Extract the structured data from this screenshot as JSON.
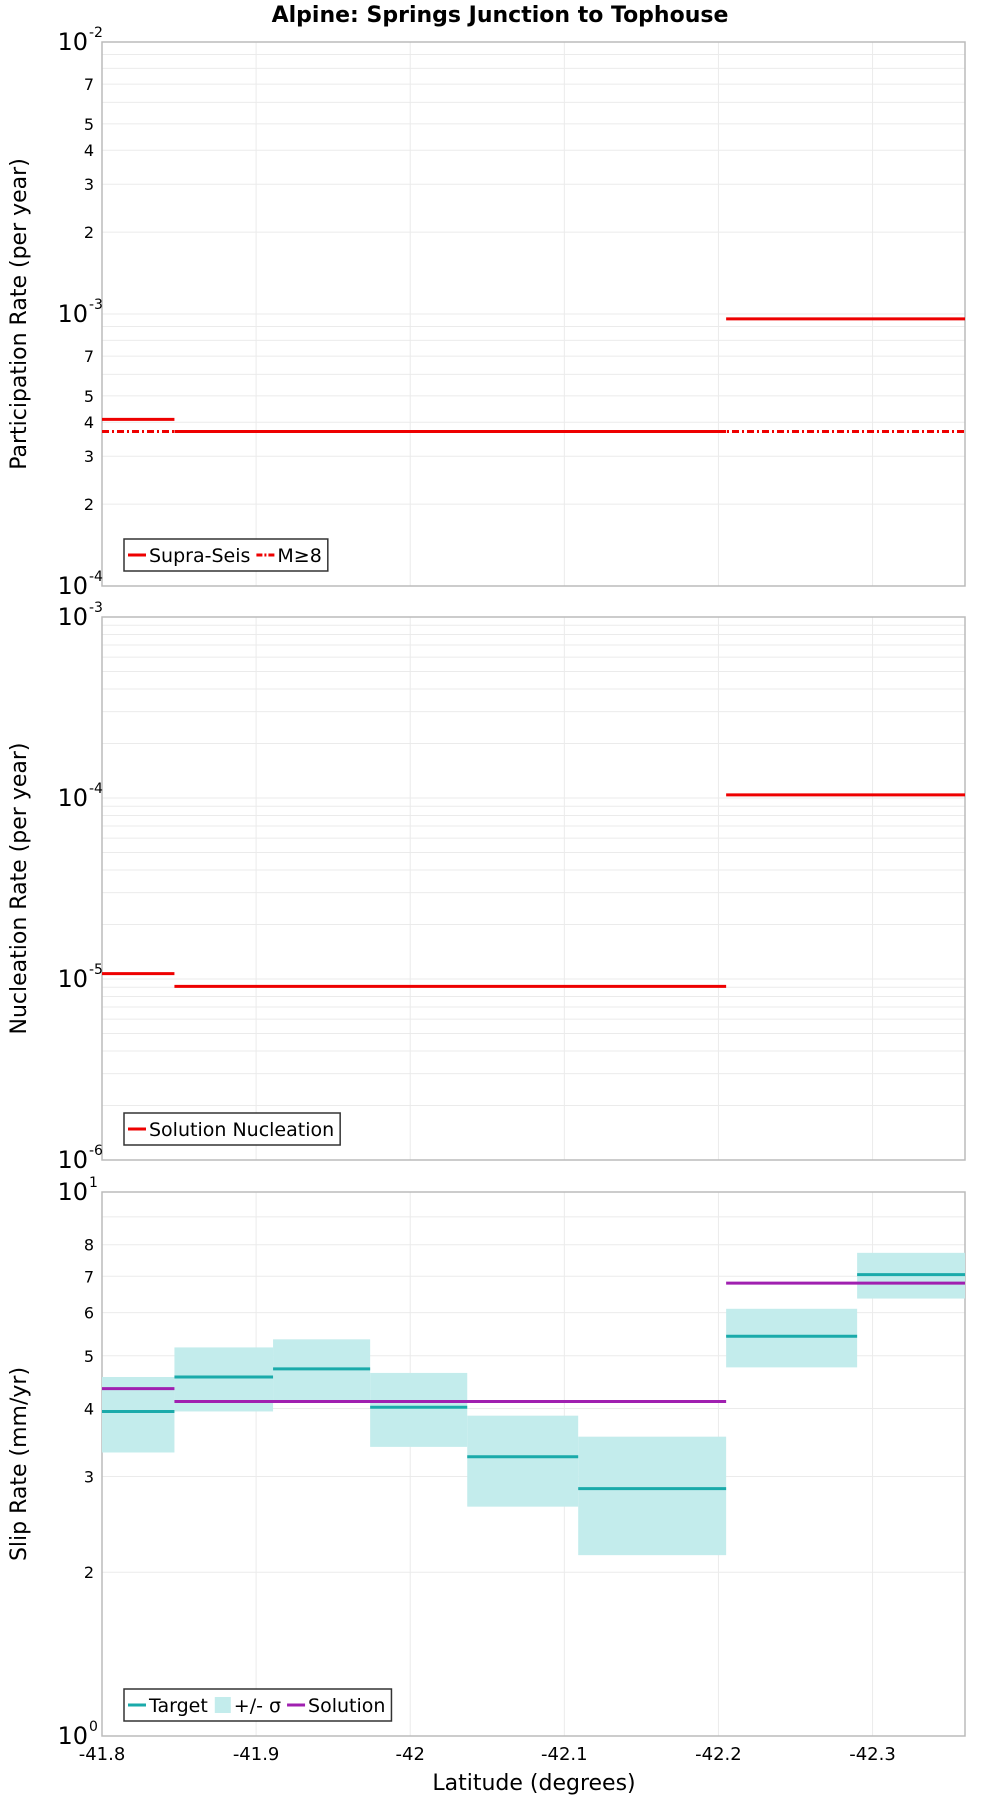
{
  "title": "Alpine: Springs Junction to Tophouse",
  "xlabel": "Latitude (degrees)",
  "colors": {
    "red": "#ee0000",
    "teal": "#1aaaaa",
    "band": "#c3ecec",
    "purple": "#a020b0",
    "grid": "#ebebeb",
    "frame": "#bbbbbb"
  },
  "x_axis": {
    "range": [
      -41.8,
      -42.36
    ],
    "ticks": [
      -41.8,
      -41.9,
      -42,
      -42.1,
      -42.2,
      -42.3
    ],
    "tick_labels": [
      "-41.8",
      "-41.9",
      "-42",
      "-42.1",
      "-42.2",
      "-42.3"
    ]
  },
  "chart_data": [
    {
      "type": "line",
      "ylabel": "Participation Rate (per year)",
      "yscale": "log",
      "ylim": [
        0.0001,
        0.01
      ],
      "major_ticks": [
        {
          "value": 0.01,
          "base": "10",
          "exp": "-2"
        },
        {
          "value": 0.001,
          "base": "10",
          "exp": "-3"
        },
        {
          "value": 0.0001,
          "base": "10",
          "exp": "-4"
        }
      ],
      "minor_ticks": [
        {
          "value": 0.007,
          "label": "7"
        },
        {
          "value": 0.005,
          "label": "5"
        },
        {
          "value": 0.004,
          "label": "4"
        },
        {
          "value": 0.003,
          "label": "3"
        },
        {
          "value": 0.002,
          "label": "2"
        },
        {
          "value": 0.0007,
          "label": "7"
        },
        {
          "value": 0.0005,
          "label": "5"
        },
        {
          "value": 0.0004,
          "label": "4"
        },
        {
          "value": 0.0003,
          "label": "3"
        },
        {
          "value": 0.0002,
          "label": "2"
        }
      ],
      "legend": [
        {
          "label": "Supra-Seis",
          "style": "solid",
          "color": "#ee0000"
        },
        {
          "label": "M≥8",
          "style": "dashdot",
          "color": "#ee0000"
        }
      ],
      "series": [
        {
          "name": "Supra-Seis",
          "style": "solid",
          "color": "#ee0000",
          "segments": [
            {
              "x": [
                -41.8,
                -41.847
              ],
              "y": 0.00041
            },
            {
              "x": [
                -41.847,
                -42.205
              ],
              "y": 0.00037
            },
            {
              "x": [
                -42.205,
                -42.36
              ],
              "y": 0.00096
            }
          ]
        },
        {
          "name": "M≥8",
          "style": "dashdot",
          "color": "#ee0000",
          "segments": [
            {
              "x": [
                -41.8,
                -42.36
              ],
              "y": 0.00037
            }
          ]
        }
      ]
    },
    {
      "type": "line",
      "ylabel": "Nucleation Rate (per year)",
      "yscale": "log",
      "ylim": [
        1e-06,
        0.001
      ],
      "major_ticks": [
        {
          "value": 0.001,
          "base": "10",
          "exp": "-3"
        },
        {
          "value": 0.0001,
          "base": "10",
          "exp": "-4"
        },
        {
          "value": 1e-05,
          "base": "10",
          "exp": "-5"
        },
        {
          "value": 1e-06,
          "base": "10",
          "exp": "-6"
        }
      ],
      "minor_ticks": [],
      "legend": [
        {
          "label": "Solution Nucleation",
          "style": "solid",
          "color": "#ee0000"
        }
      ],
      "series": [
        {
          "name": "Solution Nucleation",
          "style": "solid",
          "color": "#ee0000",
          "segments": [
            {
              "x": [
                -41.8,
                -41.847
              ],
              "y": 1.07e-05
            },
            {
              "x": [
                -41.847,
                -42.205
              ],
              "y": 9.1e-06
            },
            {
              "x": [
                -42.205,
                -42.36
              ],
              "y": 0.000104
            }
          ]
        }
      ]
    },
    {
      "type": "line",
      "ylabel": "Slip Rate (mm/yr)",
      "yscale": "log",
      "ylim": [
        1,
        10
      ],
      "major_ticks": [
        {
          "value": 10,
          "base": "10",
          "exp": "1"
        },
        {
          "value": 1,
          "base": "10",
          "exp": "0"
        }
      ],
      "minor_ticks": [
        {
          "value": 8,
          "label": "8"
        },
        {
          "value": 7,
          "label": "7"
        },
        {
          "value": 6,
          "label": "6"
        },
        {
          "value": 5,
          "label": "5"
        },
        {
          "value": 4,
          "label": "4"
        },
        {
          "value": 3,
          "label": "3"
        },
        {
          "value": 2,
          "label": "2"
        }
      ],
      "legend": [
        {
          "label": "Target",
          "style": "solid",
          "color": "#1aaaaa"
        },
        {
          "label": "+/- σ",
          "style": "band",
          "color": "#c3ecec"
        },
        {
          "label": "Solution",
          "style": "solid",
          "color": "#a020b0"
        }
      ],
      "target_bins": [
        {
          "x": [
            -41.8,
            -41.847
          ],
          "value": 3.95,
          "low": 3.32,
          "high": 4.57
        },
        {
          "x": [
            -41.847,
            -41.911
          ],
          "value": 4.57,
          "low": 3.95,
          "high": 5.18
        },
        {
          "x": [
            -41.911,
            -41.974
          ],
          "value": 4.73,
          "low": 4.12,
          "high": 5.36
        },
        {
          "x": [
            -41.974,
            -42.037
          ],
          "value": 4.02,
          "low": 3.4,
          "high": 4.65
        },
        {
          "x": [
            -42.037,
            -42.109
          ],
          "value": 3.26,
          "low": 2.64,
          "high": 3.88
        },
        {
          "x": [
            -42.109,
            -42.205
          ],
          "value": 2.85,
          "low": 2.15,
          "high": 3.55
        },
        {
          "x": [
            -42.205,
            -42.29
          ],
          "value": 5.43,
          "low": 4.76,
          "high": 6.1
        },
        {
          "x": [
            -42.29,
            -42.36
          ],
          "value": 7.05,
          "low": 6.37,
          "high": 7.73
        }
      ],
      "solution_segments": [
        {
          "x": [
            -41.8,
            -41.847
          ],
          "y": 4.35
        },
        {
          "x": [
            -41.847,
            -42.205
          ],
          "y": 4.12
        },
        {
          "x": [
            -42.205,
            -42.36
          ],
          "y": 6.8
        }
      ]
    }
  ]
}
